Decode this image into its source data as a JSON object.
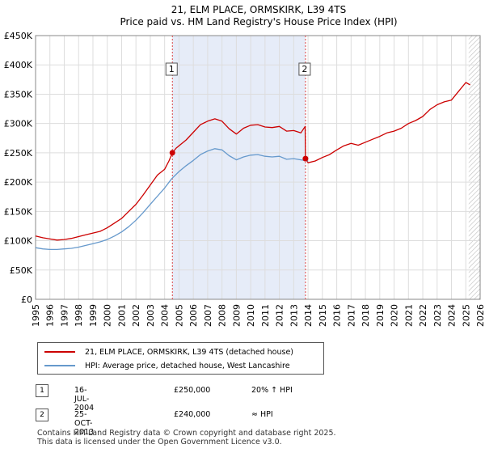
{
  "chart_data": {
    "type": "line",
    "title": "21, ELM PLACE, ORMSKIRK, L39 4TS",
    "subtitle": "Price paid vs. HM Land Registry's House Price Index (HPI)",
    "xlim": [
      1995.0,
      2026.0
    ],
    "ylim": [
      0,
      450000
    ],
    "x_ticks": [
      "1995",
      "1996",
      "1997",
      "1998",
      "1999",
      "2000",
      "2001",
      "2002",
      "2003",
      "2004",
      "2005",
      "2006",
      "2007",
      "2008",
      "2009",
      "2010",
      "2011",
      "2012",
      "2013",
      "2014",
      "2015",
      "2016",
      "2017",
      "2018",
      "2019",
      "2020",
      "2021",
      "2022",
      "2023",
      "2024",
      "2025",
      "2026"
    ],
    "y_ticks": [
      {
        "value": 0,
        "label": "£0"
      },
      {
        "value": 50000,
        "label": "£50K"
      },
      {
        "value": 100000,
        "label": "£100K"
      },
      {
        "value": 150000,
        "label": "£150K"
      },
      {
        "value": 200000,
        "label": "£200K"
      },
      {
        "value": 250000,
        "label": "£250K"
      },
      {
        "value": 300000,
        "label": "£300K"
      },
      {
        "value": 350000,
        "label": "£350K"
      },
      {
        "value": 400000,
        "label": "£400K"
      },
      {
        "value": 450000,
        "label": "£450K"
      }
    ],
    "grid": true,
    "legend_position": "below-chart",
    "shaded_period": [
      2004.54,
      2013.82
    ],
    "forecast_from": 2025.2,
    "series": [
      {
        "name": "21, ELM PLACE, ORMSKIRK, L39 4TS (detached house)",
        "color": "#cc0000",
        "x": [
          1995.0,
          1995.5,
          1996.0,
          1996.5,
          1997.0,
          1997.5,
          1998.0,
          1998.5,
          1999.0,
          1999.5,
          2000.0,
          2000.5,
          2001.0,
          2001.5,
          2002.0,
          2002.5,
          2003.0,
          2003.5,
          2004.0,
          2004.3,
          2004.54,
          2004.8,
          2005.0,
          2005.5,
          2006.0,
          2006.5,
          2007.0,
          2007.5,
          2008.0,
          2008.5,
          2009.0,
          2009.5,
          2010.0,
          2010.5,
          2011.0,
          2011.5,
          2012.0,
          2012.5,
          2013.0,
          2013.5,
          2013.8,
          2013.82,
          2014.0,
          2014.5,
          2015.0,
          2015.5,
          2016.0,
          2016.5,
          2017.0,
          2017.5,
          2018.0,
          2018.5,
          2019.0,
          2019.5,
          2020.0,
          2020.5,
          2021.0,
          2021.5,
          2022.0,
          2022.5,
          2023.0,
          2023.5,
          2024.0,
          2024.5,
          2025.0,
          2025.3
        ],
        "y": [
          108000,
          105000,
          103000,
          101000,
          102000,
          104000,
          107000,
          110000,
          113000,
          116000,
          122000,
          130000,
          138000,
          150000,
          162000,
          178000,
          195000,
          212000,
          222000,
          236000,
          250000,
          258000,
          262000,
          272000,
          285000,
          298000,
          304000,
          308000,
          304000,
          291000,
          282000,
          292000,
          297000,
          298000,
          294000,
          293000,
          295000,
          287000,
          288000,
          284000,
          295000,
          240000,
          233000,
          236000,
          242000,
          247000,
          255000,
          262000,
          266000,
          263000,
          268000,
          273000,
          278000,
          284000,
          287000,
          292000,
          300000,
          305000,
          312000,
          324000,
          332000,
          337000,
          340000,
          355000,
          370000,
          366000
        ]
      },
      {
        "name": "HPI: Average price, detached house, West Lancashire",
        "color": "#6699cc",
        "x": [
          1995.0,
          1995.5,
          1996.0,
          1996.5,
          1997.0,
          1997.5,
          1998.0,
          1998.5,
          1999.0,
          1999.5,
          2000.0,
          2000.5,
          2001.0,
          2001.5,
          2002.0,
          2002.5,
          2003.0,
          2003.5,
          2004.0,
          2004.5,
          2005.0,
          2005.5,
          2006.0,
          2006.5,
          2007.0,
          2007.5,
          2008.0,
          2008.5,
          2009.0,
          2009.5,
          2010.0,
          2010.5,
          2011.0,
          2011.5,
          2012.0,
          2012.5,
          2013.0,
          2013.5,
          2014.0
        ],
        "y": [
          88000,
          86000,
          85000,
          85000,
          86000,
          87000,
          89000,
          92000,
          95000,
          98000,
          102000,
          108000,
          115000,
          124000,
          135000,
          148000,
          162000,
          176000,
          190000,
          206000,
          218000,
          228000,
          237000,
          247000,
          253000,
          257000,
          255000,
          245000,
          238000,
          243000,
          246000,
          247000,
          244000,
          243000,
          244000,
          239000,
          240000,
          238000,
          236000
        ]
      }
    ],
    "annotations": [
      {
        "label": "1",
        "x": 2004.54,
        "y": 250000
      },
      {
        "label": "2",
        "x": 2013.82,
        "y": 240000
      }
    ]
  },
  "legend": {
    "items": [
      {
        "label": "21, ELM PLACE, ORMSKIRK, L39 4TS (detached house)",
        "color": "#cc0000"
      },
      {
        "label": "HPI: Average price, detached house, West Lancashire",
        "color": "#6699cc"
      }
    ]
  },
  "sales": [
    {
      "num": "1",
      "date": "16-JUL-2004",
      "price": "£250,000",
      "hpi": "20% ↑ HPI"
    },
    {
      "num": "2",
      "date": "25-OCT-2013",
      "price": "£240,000",
      "hpi": "≈ HPI"
    }
  ],
  "footer": {
    "line1": "Contains HM Land Registry data © Crown copyright and database right 2025.",
    "line2": "This data is licensed under the Open Government Licence v3.0."
  }
}
